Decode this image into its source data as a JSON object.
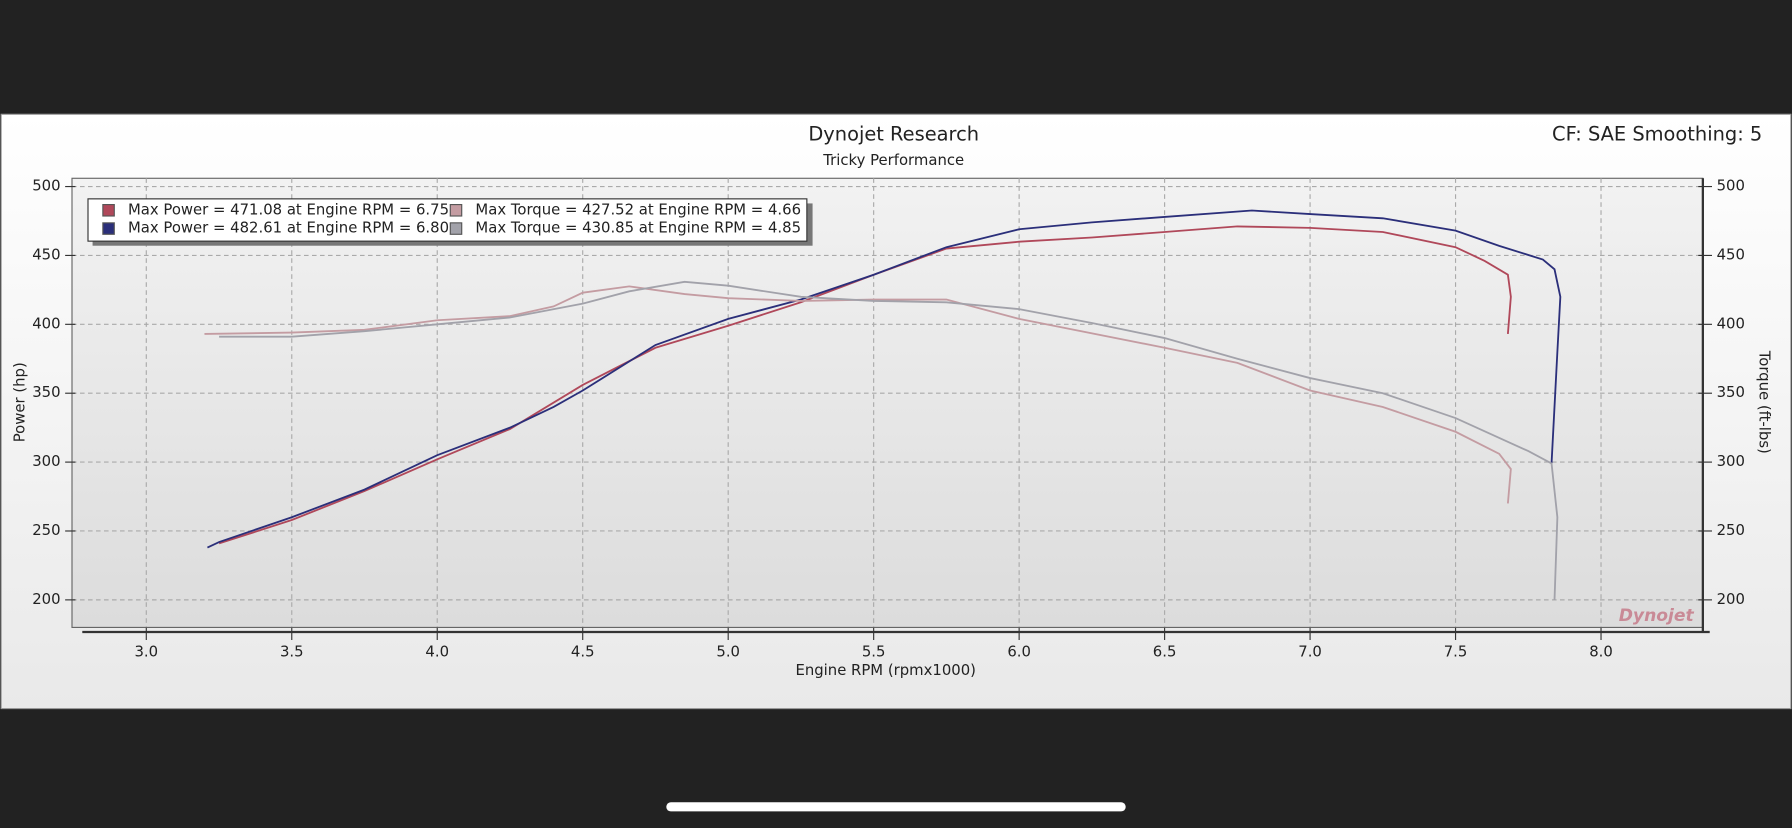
{
  "chart_data": {
    "type": "line",
    "title": "Dynojet Research",
    "subtitle": "Tricky Performance",
    "corner_note": "CF: SAE Smoothing: 5",
    "logo": "Dynojet",
    "x_label": "Engine RPM (rpmx1000)",
    "y_label": "Power (hp)",
    "y2_label": "Torque (ft-lbs)",
    "grid": true,
    "legend": "top-left",
    "xlim": [
      2.78,
      8.35
    ],
    "xticks": [
      {
        "value": 3,
        "label": "3.0"
      },
      3.5,
      {
        "value": 4,
        "label": "4.0"
      },
      4.5,
      {
        "value": 5,
        "label": "5.0"
      },
      5.5,
      {
        "value": 6,
        "label": "6.0"
      },
      6.5,
      {
        "value": 7,
        "label": "7.0"
      },
      7.5,
      {
        "value": 8,
        "label": "8.0"
      }
    ],
    "ylim": [
      180,
      506
    ],
    "yticks": [
      200,
      250,
      300,
      350,
      400,
      450,
      500
    ],
    "y2lim": [
      180,
      506
    ],
    "y2ticks": [
      200,
      250,
      300,
      350,
      400,
      450,
      500
    ],
    "series": [
      {
        "name": "Max Power = 471.08 at Engine RPM = 6.75",
        "color": "#b0485a",
        "axis": "y",
        "x": [
          3.25,
          3.5,
          3.75,
          4.0,
          4.25,
          4.5,
          4.75,
          5.0,
          5.25,
          5.5,
          5.75,
          6.0,
          6.25,
          6.5,
          6.75,
          7.0,
          7.25,
          7.5,
          7.6,
          7.68,
          7.69,
          7.68
        ],
        "values": [
          241,
          258,
          279,
          302,
          324,
          356,
          383,
          399,
          416,
          436,
          455,
          460,
          463,
          467,
          471.08,
          470,
          467,
          456,
          446,
          436,
          420,
          393
        ]
      },
      {
        "name": "Max Power = 482.61 at Engine RPM = 6.80",
        "color": "#2b2f7a",
        "axis": "y",
        "x": [
          3.21,
          3.25,
          3.5,
          3.75,
          4.0,
          4.25,
          4.4,
          4.5,
          4.75,
          5.0,
          5.25,
          5.5,
          5.75,
          6.0,
          6.25,
          6.5,
          6.8,
          7.0,
          7.25,
          7.5,
          7.65,
          7.8,
          7.84,
          7.86,
          7.85,
          7.83
        ],
        "values": [
          238,
          242,
          260,
          280,
          305,
          325,
          340,
          352,
          385,
          404,
          418,
          436,
          456,
          469,
          474,
          478,
          482.61,
          480,
          477,
          468,
          457,
          447,
          440,
          420,
          380,
          299
        ]
      },
      {
        "name": "Max Torque = 427.52 at Engine RPM = 4.66",
        "color": "#c49ca2",
        "axis": "y2",
        "x": [
          3.2,
          3.5,
          3.75,
          4.0,
          4.25,
          4.4,
          4.5,
          4.66,
          4.85,
          5.0,
          5.25,
          5.5,
          5.75,
          6.0,
          6.5,
          6.75,
          7.0,
          7.25,
          7.5,
          7.65,
          7.69,
          7.68
        ],
        "values": [
          393,
          394,
          396,
          403,
          406,
          413,
          423,
          427.52,
          422,
          419,
          417,
          418,
          418,
          404,
          383,
          372,
          352,
          340,
          322,
          306,
          295,
          270
        ]
      },
      {
        "name": "Max Torque = 430.85 at Engine RPM = 4.85",
        "color": "#a2a2aa",
        "axis": "y2",
        "x": [
          3.25,
          3.5,
          3.75,
          4.0,
          4.25,
          4.5,
          4.66,
          4.85,
          5.0,
          5.25,
          5.5,
          5.75,
          6.0,
          6.25,
          6.5,
          6.75,
          7.0,
          7.25,
          7.5,
          7.75,
          7.83,
          7.85,
          7.84
        ],
        "values": [
          391,
          391,
          395,
          400,
          405,
          415,
          424,
          430.85,
          428,
          420,
          417,
          416,
          411,
          401,
          390,
          375,
          361,
          350,
          332,
          308,
          299,
          260,
          200
        ]
      }
    ]
  }
}
